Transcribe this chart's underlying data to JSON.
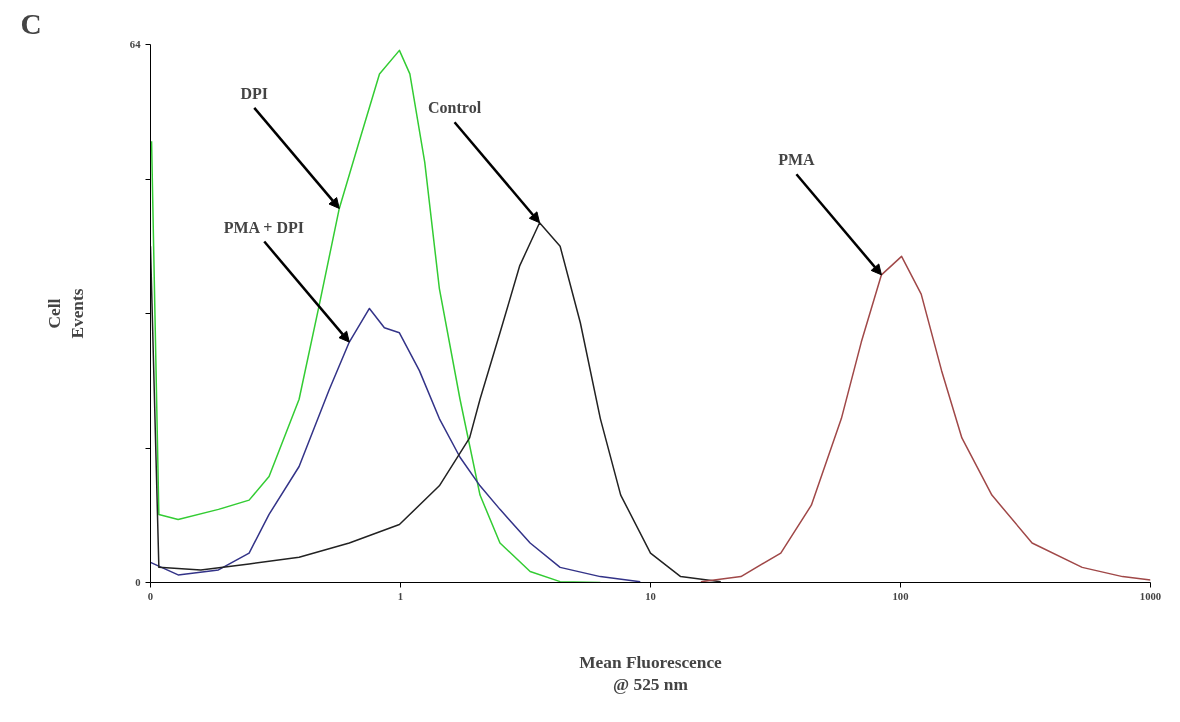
{
  "chart_data": {
    "type": "line",
    "title": "C",
    "xlabel": "Mean Fluorescence\n@ 525 nm",
    "ylabel": "Cell\nEvents",
    "log": "x",
    "xlim": [
      0.1,
      1000
    ],
    "xticks": [
      {
        "value": 0.1,
        "label": "0"
      },
      1,
      10,
      100,
      1000
    ],
    "ylim": [
      0,
      64
    ],
    "yticks": [
      0,
      {
        "value": 16,
        "label": null
      },
      {
        "value": 32,
        "label": null
      },
      {
        "value": 48,
        "label": null
      },
      64
    ],
    "grid": false,
    "marker": "none",
    "line_style": "solid",
    "series": [
      {
        "color": "#33cc33",
        "x": [
          0.101,
          0.108,
          0.129,
          0.187,
          0.248,
          0.298,
          0.393,
          0.473,
          0.569,
          0.684,
          0.824,
          0.99,
          1.09,
          1.25,
          1.43,
          1.73,
          2.08,
          2.5,
          3.3,
          4.35,
          6.3
        ],
        "values": [
          52.5,
          8.1,
          7.5,
          8.7,
          9.8,
          12.6,
          21.8,
          33,
          44.5,
          52.5,
          60.5,
          63.3,
          60.5,
          50,
          35,
          21.8,
          10.4,
          4.7,
          1.3,
          0.1,
          0
        ]
      },
      {
        "color": "#333388",
        "x": [
          0.1,
          0.129,
          0.187,
          0.248,
          0.298,
          0.393,
          0.518,
          0.624,
          0.751,
          0.862,
          0.99,
          1.19,
          1.43,
          1.73,
          2.08,
          2.5,
          3.3,
          4.35,
          6.3,
          9.1
        ],
        "values": [
          2.4,
          0.9,
          1.5,
          3.5,
          8.1,
          13.8,
          22.9,
          28.6,
          32.6,
          30.3,
          29.7,
          25.2,
          19.5,
          14.9,
          11.5,
          8.7,
          4.7,
          1.8,
          0.7,
          0.1
        ]
      },
      {
        "color": "#222222",
        "x": [
          0.1,
          0.108,
          0.159,
          0.248,
          0.393,
          0.624,
          0.99,
          1.43,
          1.89,
          2.08,
          2.5,
          3.0,
          3.6,
          4.35,
          5.24,
          6.3,
          7.6,
          10,
          13.2,
          19.1
        ],
        "values": [
          40,
          1.8,
          1.5,
          2.2,
          3.0,
          4.7,
          6.9,
          11.5,
          17.2,
          21.8,
          29.7,
          37.7,
          42.8,
          40,
          30.9,
          19.5,
          10.4,
          3.5,
          0.7,
          0.1
        ]
      },
      {
        "color": "#a04848",
        "x": [
          15.9,
          23,
          33.2,
          44,
          58,
          69.7,
          83.9,
          101,
          121,
          146,
          176,
          232,
          336,
          533,
          773,
          1000
        ],
        "values": [
          0.1,
          0.7,
          3.5,
          9.2,
          19.5,
          28.6,
          36.6,
          38.8,
          34.3,
          25.2,
          17.2,
          10.4,
          4.7,
          1.8,
          0.7,
          0.3
        ]
      }
    ],
    "annotations": [
      {
        "text": "DPI",
        "x": 0.569,
        "y": 44.5
      },
      {
        "text": "PMA + DPI",
        "x": 0.624,
        "y": 28.6
      },
      {
        "text": "Control",
        "x": 3.6,
        "y": 42.8
      },
      {
        "text": "PMA",
        "x": 83.9,
        "y": 36.6
      }
    ]
  }
}
